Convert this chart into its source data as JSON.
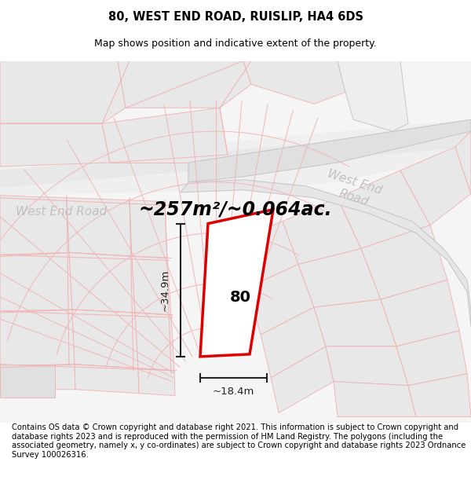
{
  "title": "80, WEST END ROAD, RUISLIP, HA4 6DS",
  "subtitle": "Map shows position and indicative extent of the property.",
  "footer": "Contains OS data © Crown copyright and database right 2021. This information is subject to Crown copyright and database rights 2023 and is reproduced with the permission of HM Land Registry. The polygons (including the associated geometry, namely x, y co-ordinates) are subject to Crown copyright and database rights 2023 Ordnance Survey 100026316.",
  "area_text": "~257m²/~0.064ac.",
  "dim_width": "~18.4m",
  "dim_height": "~34.9m",
  "label_80": "80",
  "map_bg": "#f7f6f6",
  "road_pink": "#f0b8b8",
  "road_gray": "#c8c8c8",
  "block_light": "#e6e6e6",
  "block_white": "#f0f0f0",
  "red_outline": "#dd0000",
  "dim_color": "#222222",
  "road_label_color": "#c0c0c0",
  "title_fontsize": 10.5,
  "subtitle_fontsize": 9,
  "footer_fontsize": 7.2,
  "area_fontsize": 17,
  "label_fontsize": 14,
  "dim_fontsize": 9.5,
  "road_label_fontsize": 11
}
